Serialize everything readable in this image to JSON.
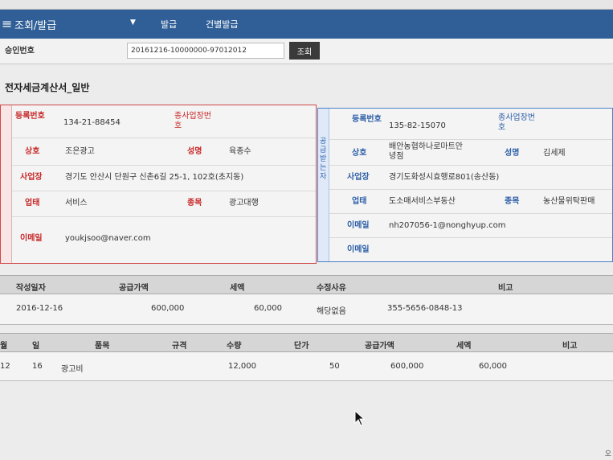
{
  "nav": {
    "title": "조회/발급",
    "items": [
      "발급",
      "건별발급"
    ]
  },
  "approval": {
    "label": "승인번호",
    "value": "20161216-10000000-97012012",
    "button": "조회"
  },
  "document_title": "전자세금계산서_일반",
  "supplier": {
    "reg_no_label": "등록번호",
    "reg_no": "134-21-88454",
    "sub_biz_label": "종사업장번호",
    "name_label": "상호",
    "name": "조은광고",
    "owner_label": "성명",
    "owner": "육종수",
    "address_label": "사업장",
    "address": "경기도 안산시 단원구 신촌6길 25-1, 102호(초지동)",
    "type_label": "업태",
    "type": "서비스",
    "item_label": "종목",
    "item": "광고대행",
    "email_label": "이메일",
    "email": "youkjsoo@naver.com"
  },
  "receiver": {
    "title": "공급받는자",
    "reg_no_label": "등록번호",
    "reg_no": "135-82-15070",
    "sub_biz_label": "종사업장번호",
    "name_label": "상호",
    "name": "배안농협하나로마트안녕점",
    "owner_label": "성명",
    "owner": "김세제",
    "address_label": "사업장",
    "address": "경기도화성시효행로801(송산동)",
    "type_label": "업태",
    "type": "도소매서비스부동산",
    "item_label": "종목",
    "item": "농산물위탁판매",
    "email_label": "이메일",
    "email": "nh207056-1@nonghyup.com",
    "email2_label": "이메일"
  },
  "summary": {
    "headers": [
      "작성일자",
      "공급가액",
      "세액",
      "수정사유",
      "비고"
    ],
    "row": {
      "date": "2016-12-16",
      "supply": "600,000",
      "tax": "60,000",
      "reason": "해당없음",
      "note": "355-5656-0848-13"
    }
  },
  "items": {
    "headers": [
      "월",
      "일",
      "품목",
      "규격",
      "수량",
      "단가",
      "공급가액",
      "세액",
      "비고"
    ],
    "rows": [
      {
        "month": "12",
        "day": "16",
        "name": "광고비",
        "spec": "",
        "qty": "12,000",
        "price": "50",
        "supply": "600,000",
        "tax": "60,000",
        "note": ""
      }
    ]
  },
  "corner_text": "오"
}
